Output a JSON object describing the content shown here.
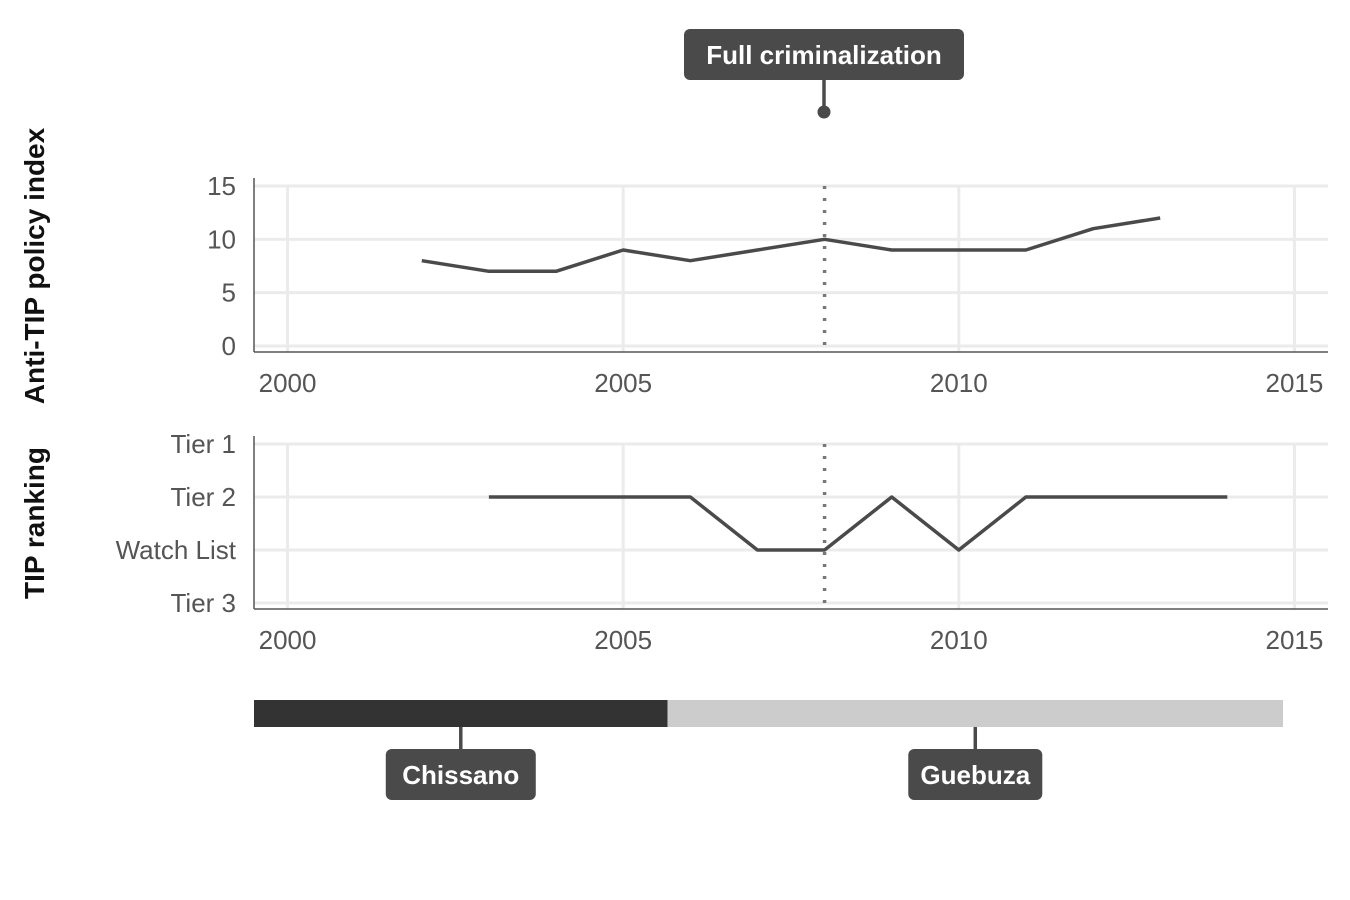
{
  "chart_data": [
    {
      "type": "line",
      "ylabel": "Anti-TIP policy index",
      "xlim": [
        1999.5,
        2015.5
      ],
      "ylim": [
        0,
        15
      ],
      "x_ticks": [
        "2000",
        "2005",
        "2010",
        "2015"
      ],
      "y_ticks": [
        "0",
        "5",
        "10",
        "15"
      ],
      "grid": true,
      "series": [
        {
          "x": [
            2002,
            2003,
            2004,
            2005,
            2006,
            2007,
            2008,
            2009,
            2010,
            2011,
            2012,
            2013
          ],
          "values": [
            8,
            7,
            7,
            9,
            8,
            9,
            10,
            9,
            9,
            9,
            11,
            12
          ]
        }
      ]
    },
    {
      "type": "line",
      "ylabel": "TIP ranking",
      "xlim": [
        1999.5,
        2015.5
      ],
      "categories_y": [
        "Tier 3",
        "Watch List",
        "Tier 2",
        "Tier 1"
      ],
      "x_ticks": [
        "2000",
        "2005",
        "2010",
        "2015"
      ],
      "y_ticks": [
        "Tier 1",
        "Tier 2",
        "Watch List",
        "Tier 3"
      ],
      "grid": true,
      "series": [
        {
          "x": [
            2003,
            2004,
            2005,
            2006,
            2007,
            2008,
            2009,
            2010,
            2011,
            2012,
            2013,
            2014
          ],
          "values": [
            "Tier 2",
            "Tier 2",
            "Tier 2",
            "Tier 2",
            "Watch List",
            "Watch List",
            "Tier 2",
            "Watch List",
            "Tier 2",
            "Tier 2",
            "Tier 2",
            "Tier 2"
          ]
        }
      ]
    }
  ],
  "event": {
    "label": "Full criminalization",
    "year": 2008
  },
  "timeline": {
    "start": 1998.75,
    "end": 2014.5,
    "segments": [
      {
        "label": "Chissano",
        "start": 1998.75,
        "end": 2005.08,
        "color": "#333333"
      },
      {
        "label": "Guebuza",
        "start": 2005.08,
        "end": 2014.5,
        "color": "#cccccc"
      }
    ]
  }
}
